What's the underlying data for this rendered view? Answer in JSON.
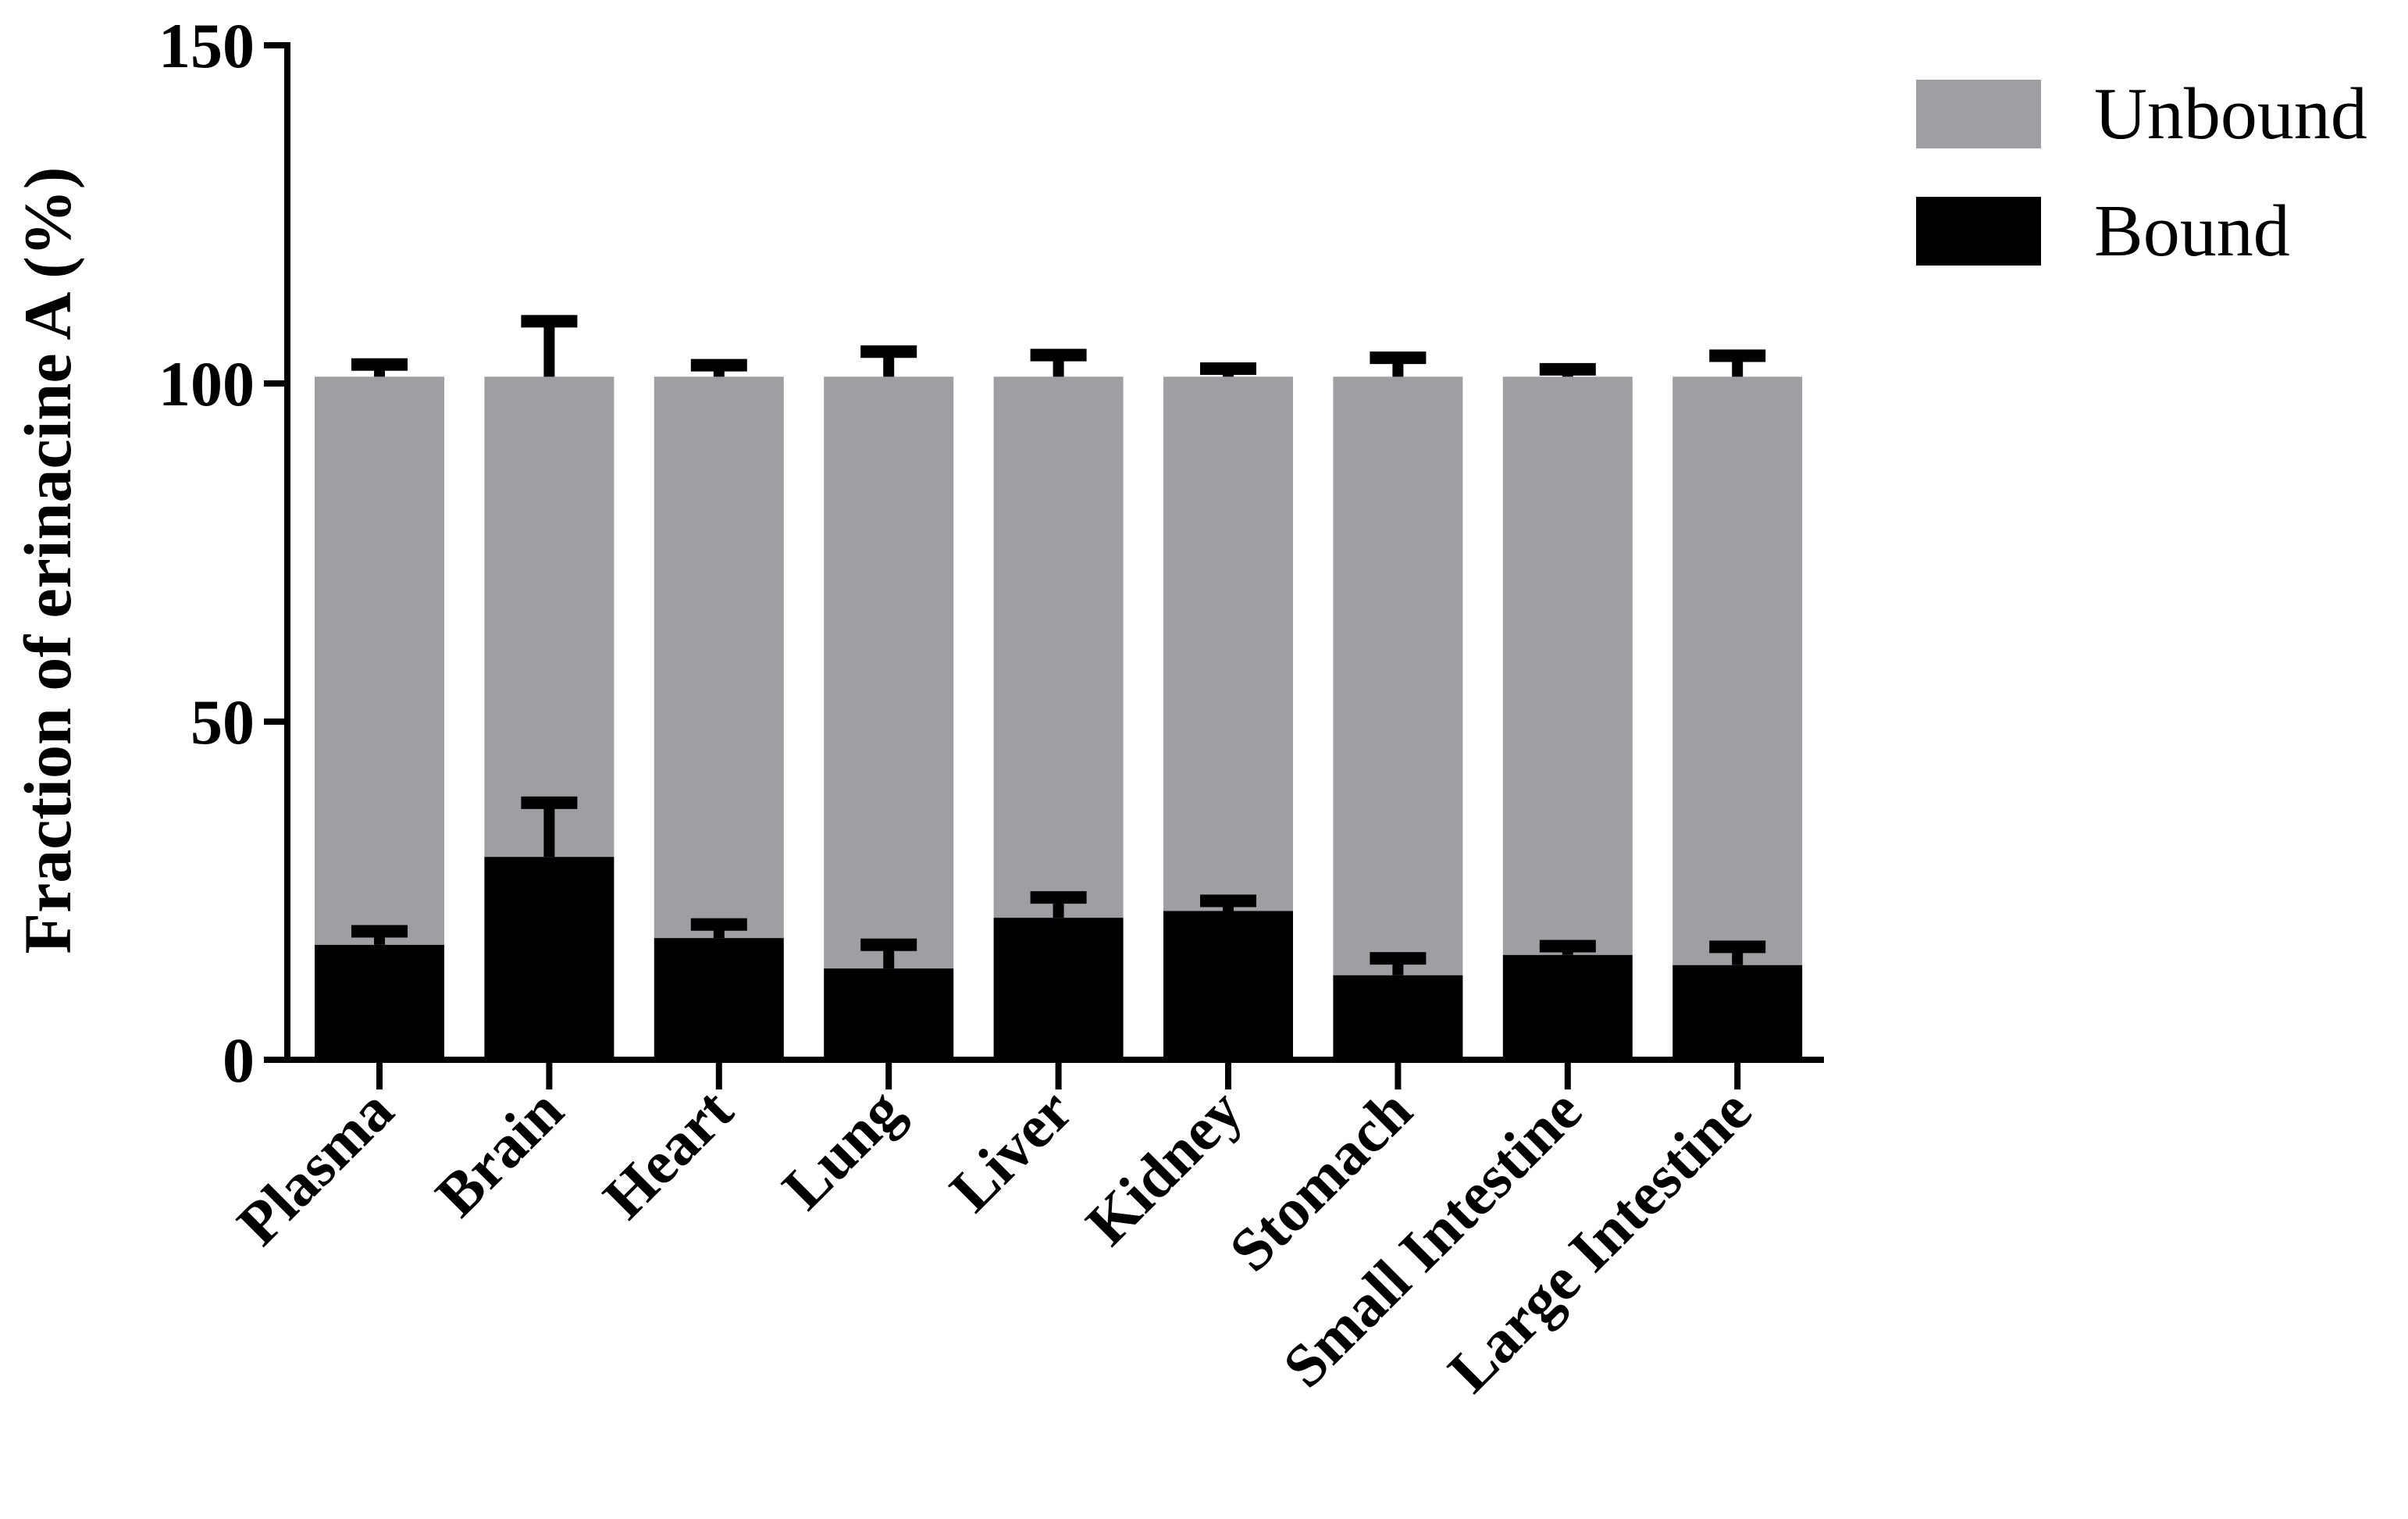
{
  "chart_data": {
    "type": "bar",
    "stacked": true,
    "title": "",
    "xlabel": "",
    "ylabel": "Fraction of erinacine A (%)",
    "ylim": [
      0,
      150
    ],
    "yticks": [
      0,
      50,
      100,
      150
    ],
    "categories": [
      "Plasma",
      "Brain",
      "Heart",
      "Lung",
      "Liver",
      "Kidney",
      "Stomach",
      "Small Intestine",
      "Large Intestine"
    ],
    "series": [
      {
        "name": "Bound",
        "color": "#000000",
        "values": [
          17,
          30,
          18,
          13.5,
          21,
          22,
          12.5,
          15.5,
          14
        ],
        "error": [
          2,
          8,
          2,
          3.5,
          3,
          1.5,
          2.5,
          1.3,
          2.7
        ]
      },
      {
        "name": "Unbound",
        "color": "#9f9ea3",
        "values": [
          84,
          71,
          83,
          87.5,
          80,
          79,
          88.5,
          85.5,
          87
        ],
        "error": [
          1.8,
          8.2,
          1.7,
          3.7,
          3.2,
          1.2,
          2.8,
          1.1,
          3.1
        ]
      }
    ],
    "legend": {
      "position": "top-right",
      "order": [
        "Unbound",
        "Bound"
      ]
    },
    "grid": false
  }
}
